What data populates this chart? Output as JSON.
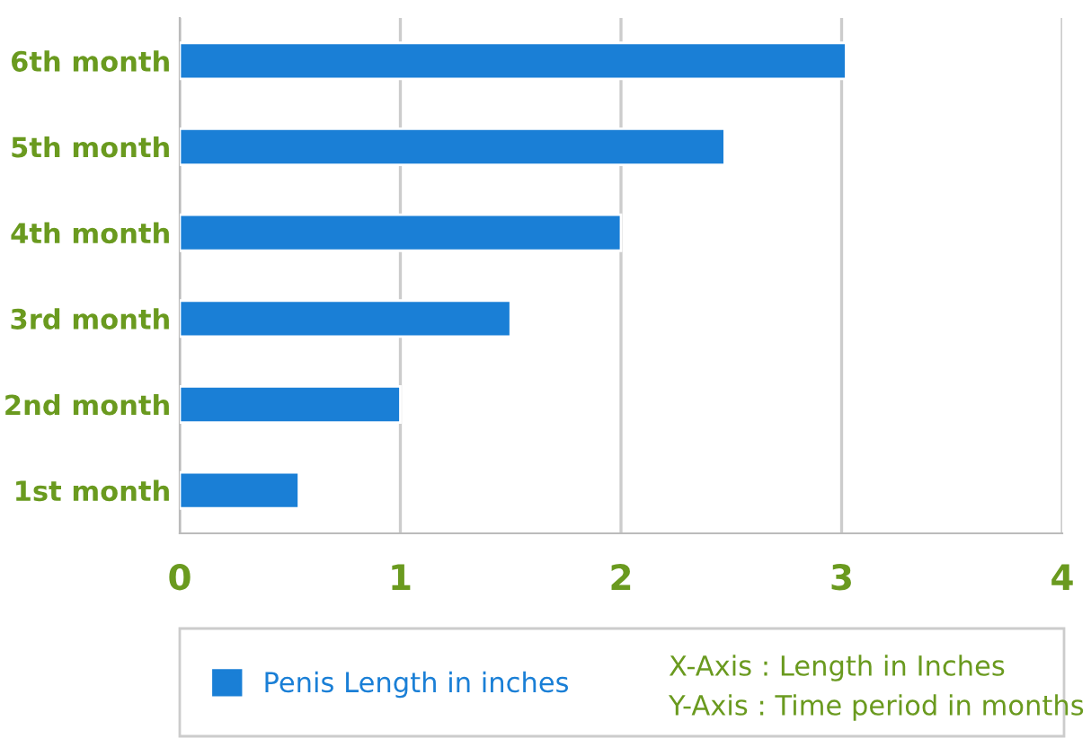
{
  "chart_data": {
    "type": "bar",
    "orientation": "horizontal",
    "categories": [
      "6th month",
      "5th month",
      "4th month",
      "3rd month",
      "2nd month",
      "1st month"
    ],
    "series": [
      {
        "name": "Penis Length in inches",
        "color": "#1a7fd6",
        "values": [
          3.02,
          2.47,
          2.0,
          1.5,
          1.0,
          0.54
        ]
      }
    ],
    "xlim": [
      0,
      4
    ],
    "xticks": [
      0,
      1,
      2,
      3,
      4
    ],
    "grid": "x",
    "legend": "bottom",
    "annotations": [
      "X-Axis : Length in Inches",
      "Y-Axis : Time period in months"
    ]
  }
}
